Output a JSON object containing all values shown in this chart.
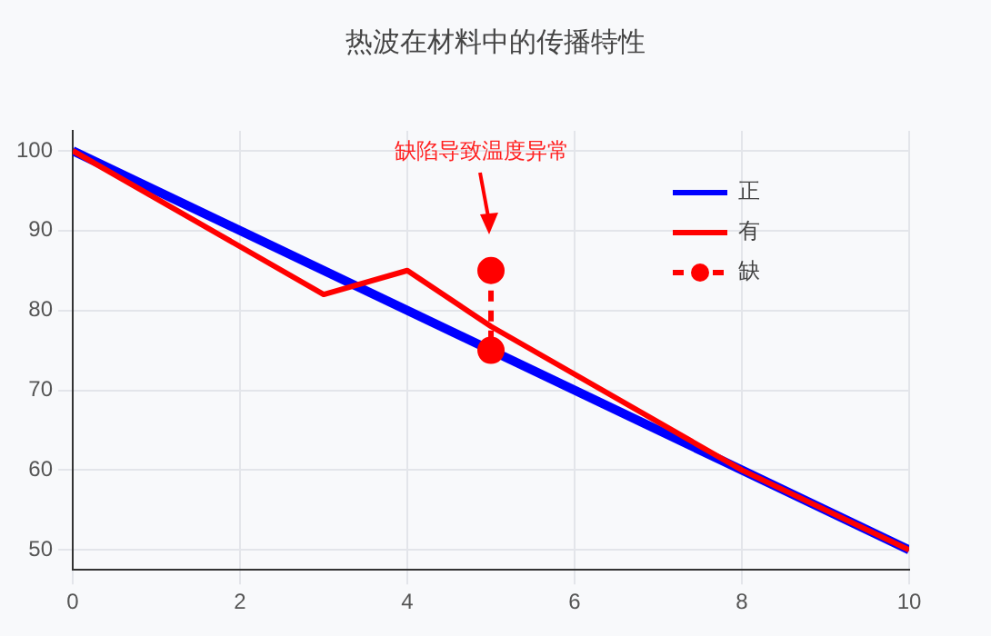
{
  "chart_data": {
    "type": "line",
    "title": "热波在材料中的传播特性",
    "xlim": [
      0,
      10
    ],
    "xticks": [
      0,
      2,
      4,
      6,
      8,
      10
    ],
    "ylim": [
      47.5,
      102.5
    ],
    "yticks": [
      50,
      60,
      70,
      80,
      90,
      100
    ],
    "series": [
      {
        "name": "正",
        "color": "#0000ff",
        "x": [
          0,
          10
        ],
        "values": [
          100,
          50
        ],
        "marker": "none"
      },
      {
        "name": "有",
        "color": "#ff0000",
        "x": [
          0,
          3,
          4,
          5,
          8,
          10
        ],
        "values": [
          100,
          82,
          85,
          78,
          60,
          50
        ],
        "marker": "none"
      },
      {
        "name": "缺",
        "color": "#ff0000",
        "x": [
          5,
          5
        ],
        "values": [
          85,
          75
        ],
        "marker": "circle",
        "line_style": "dashed"
      }
    ],
    "annotations": [
      "缺陷导致温度异常"
    ],
    "grid": true,
    "legend": "top right"
  }
}
